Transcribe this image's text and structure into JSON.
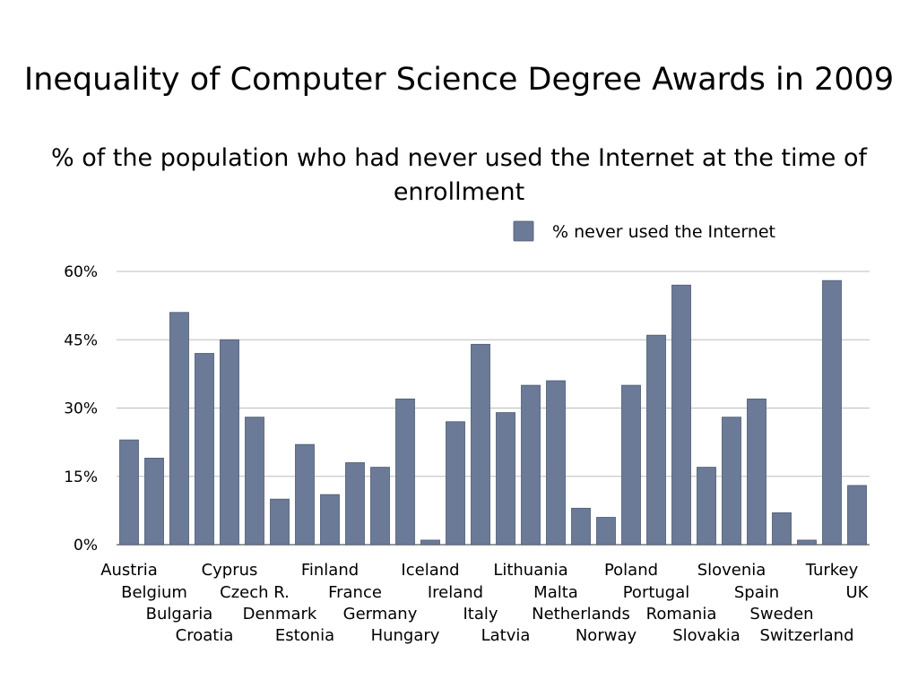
{
  "slide_title": "Inequality of Computer Science Degree Awards in 2009",
  "chart_data": {
    "type": "bar",
    "title": "% of the population who had never used the Internet at the time of enrollment",
    "xlabel": "",
    "ylabel": "",
    "ylim": [
      0,
      60
    ],
    "yticks": [
      0,
      15,
      30,
      45,
      60
    ],
    "ytick_labels": [
      "0%",
      "15%",
      "30%",
      "45%",
      "60%"
    ],
    "grid": true,
    "legend": "top-right",
    "series": [
      {
        "name": "% never used the Internet",
        "color": "#6b7a96",
        "values": [
          23,
          19,
          51,
          42,
          45,
          28,
          10,
          22,
          11,
          18,
          17,
          32,
          1,
          27,
          44,
          29,
          35,
          36,
          8,
          6,
          35,
          46,
          57,
          17,
          28,
          32,
          7,
          1,
          58,
          13
        ]
      }
    ],
    "categories": [
      "Austria",
      "Belgium",
      "Bulgaria",
      "Croatia",
      "Cyprus",
      "Czech R.",
      "Denmark",
      "Estonia",
      "Finland",
      "France",
      "Germany",
      "Hungary",
      "Iceland",
      "Ireland",
      "Italy",
      "Latvia",
      "Lithuania",
      "Malta",
      "Netherlands",
      "Norway",
      "Poland",
      "Portugal",
      "Romania",
      "Slovakia",
      "Slovenia",
      "Spain",
      "Sweden",
      "Switzerland",
      "Turkey",
      "UK"
    ]
  }
}
